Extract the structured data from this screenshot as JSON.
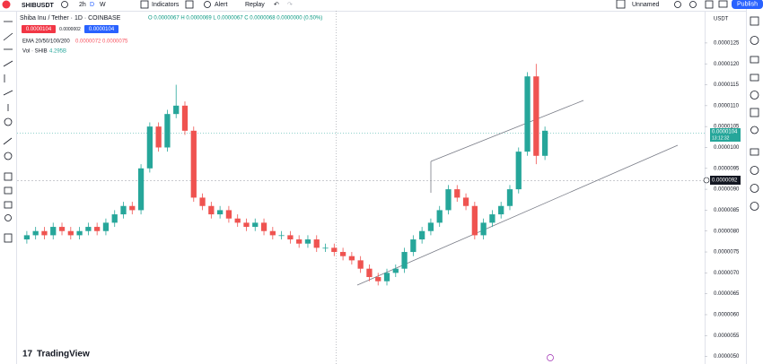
{
  "header": {
    "symbol": "SHIBUSDT",
    "intervals": [
      "2h",
      "D",
      "W"
    ],
    "indicators": "Indicators",
    "alert": "Alert",
    "replay": "Replay",
    "layout_name": "Unnamed",
    "publish": "Publish"
  },
  "legend": {
    "title": "Shiba Inu / Tether · 1D · COINBASE",
    "ohlc": "O 0.0000067 H 0.0000069 L 0.0000067 C 0.0000068 0.0000000 (0.50%)",
    "sell": "0.0000104",
    "spread": "0.0000002",
    "buy": "0.0000104",
    "ema": "EMA 20/50/100/200",
    "ema_values": "0.0000072 0.0000075",
    "vol": "Vol · SHIB",
    "vol_value": "4.295B"
  },
  "axis_currency": "USDT",
  "last_price": "0.0000104",
  "countdown": "13:12:32",
  "cursor_price": "0.0000092",
  "brand": "TradingView",
  "chart_data": {
    "type": "candlestick",
    "ylim": [
      4.82e-06,
      1.327e-05
    ],
    "yticks": [
      {
        "value": 1.25e-05,
        "label": "0.0000125"
      },
      {
        "value": 1.2e-05,
        "label": "0.0000120"
      },
      {
        "value": 1.15e-05,
        "label": "0.0000115"
      },
      {
        "value": 1.1e-05,
        "label": "0.0000110"
      },
      {
        "value": 1.05e-05,
        "label": "0.0000105"
      },
      {
        "value": 1e-05,
        "label": "0.0000100"
      },
      {
        "value": 9.5e-06,
        "label": "0.0000095"
      },
      {
        "value": 9e-06,
        "label": "0.0000090"
      },
      {
        "value": 8.5e-06,
        "label": "0.0000085"
      },
      {
        "value": 8e-06,
        "label": "0.0000080"
      },
      {
        "value": 7.5e-06,
        "label": "0.0000075"
      },
      {
        "value": 7e-06,
        "label": "0.0000070"
      },
      {
        "value": 6.5e-06,
        "label": "0.0000065"
      },
      {
        "value": 6e-06,
        "label": "0.0000060"
      },
      {
        "value": 5.5e-06,
        "label": "0.0000055"
      },
      {
        "value": 5e-06,
        "label": "0.0000050"
      }
    ],
    "up_color": "#26a69a",
    "down_color": "#ef5350",
    "open": [
      7.8e-06,
      7.9e-06,
      8e-06,
      7.9e-06,
      8.1e-06,
      8e-06,
      7.9e-06,
      8e-06,
      8.1e-06,
      8e-06,
      8.2e-06,
      8.4e-06,
      8.6e-06,
      8.5e-06,
      9.5e-06,
      1.05e-05,
      1e-05,
      1.08e-05,
      1.1e-05,
      1.04e-05,
      8.8e-06,
      8.6e-06,
      8.4e-06,
      8.5e-06,
      8.3e-06,
      8.2e-06,
      8.1e-06,
      8.2e-06,
      8e-06,
      7.9e-06,
      7.9e-06,
      7.8e-06,
      7.7e-06,
      7.8e-06,
      7.6e-06,
      7.6e-06,
      7.5e-06,
      7.4e-06,
      7.3e-06,
      7.1e-06,
      6.9e-06,
      6.8e-06,
      7e-06,
      7.1e-06,
      7.5e-06,
      7.8e-06,
      8e-06,
      8.2e-06,
      8.5e-06,
      9e-06,
      8.8e-06,
      8.6e-06,
      7.9e-06,
      8.2e-06,
      8.4e-06,
      8.6e-06,
      9e-06,
      9.9e-06,
      1.17e-05,
      9.8e-06
    ],
    "high": [
      8e-06,
      8.1e-06,
      8.1e-06,
      8.2e-06,
      8.2e-06,
      8.1e-06,
      8.1e-06,
      8.2e-06,
      8.2e-06,
      8.3e-06,
      8.5e-06,
      8.7e-06,
      8.7e-06,
      9.6e-06,
      1.06e-05,
      1.06e-05,
      1.09e-05,
      1.15e-05,
      1.11e-05,
      1.05e-05,
      8.9e-06,
      8.7e-06,
      8.6e-06,
      8.6e-06,
      8.4e-06,
      8.3e-06,
      8.3e-06,
      8.3e-06,
      8.1e-06,
      8e-06,
      8e-06,
      7.9e-06,
      7.9e-06,
      7.9e-06,
      7.7e-06,
      7.7e-06,
      7.6e-06,
      7.5e-06,
      7.4e-06,
      7.2e-06,
      7e-06,
      7.1e-06,
      7.2e-06,
      7.6e-06,
      7.9e-06,
      8.1e-06,
      8.3e-06,
      8.6e-06,
      9.1e-06,
      9.1e-06,
      8.9e-06,
      8.7e-06,
      8.3e-06,
      8.5e-06,
      8.7e-06,
      9.1e-06,
      1e-05,
      1.18e-05,
      1.2e-05,
      1.05e-05
    ],
    "low": [
      7.7e-06,
      7.8e-06,
      7.8e-06,
      7.8e-06,
      7.9e-06,
      7.8e-06,
      7.8e-06,
      7.9e-06,
      7.9e-06,
      7.9e-06,
      8.1e-06,
      8.3e-06,
      8.4e-06,
      8.4e-06,
      9.4e-06,
      9.9e-06,
      9.9e-06,
      1.07e-05,
      1.03e-05,
      8.7e-06,
      8.5e-06,
      8.3e-06,
      8.3e-06,
      8.2e-06,
      8.1e-06,
      8e-06,
      8e-06,
      7.9e-06,
      7.8e-06,
      7.8e-06,
      7.7e-06,
      7.6e-06,
      7.6e-06,
      7.5e-06,
      7.5e-06,
      7.4e-06,
      7.3e-06,
      7.2e-06,
      7e-06,
      6.8e-06,
      6.7e-06,
      6.7e-06,
      6.9e-06,
      7e-06,
      7.4e-06,
      7.7e-06,
      7.9e-06,
      8.1e-06,
      8.4e-06,
      8.7e-06,
      8.5e-06,
      7.8e-06,
      7.8e-06,
      8.1e-06,
      8.3e-06,
      8.5e-06,
      8.9e-06,
      9.8e-06,
      9.6e-06,
      9.7e-06
    ],
    "close": [
      7.9e-06,
      8e-06,
      7.9e-06,
      8.1e-06,
      8e-06,
      7.9e-06,
      8e-06,
      8.1e-06,
      8e-06,
      8.2e-06,
      8.4e-06,
      8.6e-06,
      8.5e-06,
      9.5e-06,
      1.05e-05,
      1e-05,
      1.08e-05,
      1.1e-05,
      1.04e-05,
      8.8e-06,
      8.6e-06,
      8.4e-06,
      8.5e-06,
      8.3e-06,
      8.2e-06,
      8.1e-06,
      8.2e-06,
      8e-06,
      7.9e-06,
      7.9e-06,
      7.8e-06,
      7.7e-06,
      7.8e-06,
      7.6e-06,
      7.6e-06,
      7.5e-06,
      7.4e-06,
      7.3e-06,
      7.1e-06,
      6.9e-06,
      6.8e-06,
      7e-06,
      7.1e-06,
      7.5e-06,
      7.8e-06,
      8e-06,
      8.2e-06,
      8.5e-06,
      9e-06,
      8.8e-06,
      8.6e-06,
      7.9e-06,
      8.2e-06,
      8.4e-06,
      8.6e-06,
      9e-06,
      9.9e-06,
      1.17e-05,
      9.8e-06,
      1.04e-05
    ]
  }
}
